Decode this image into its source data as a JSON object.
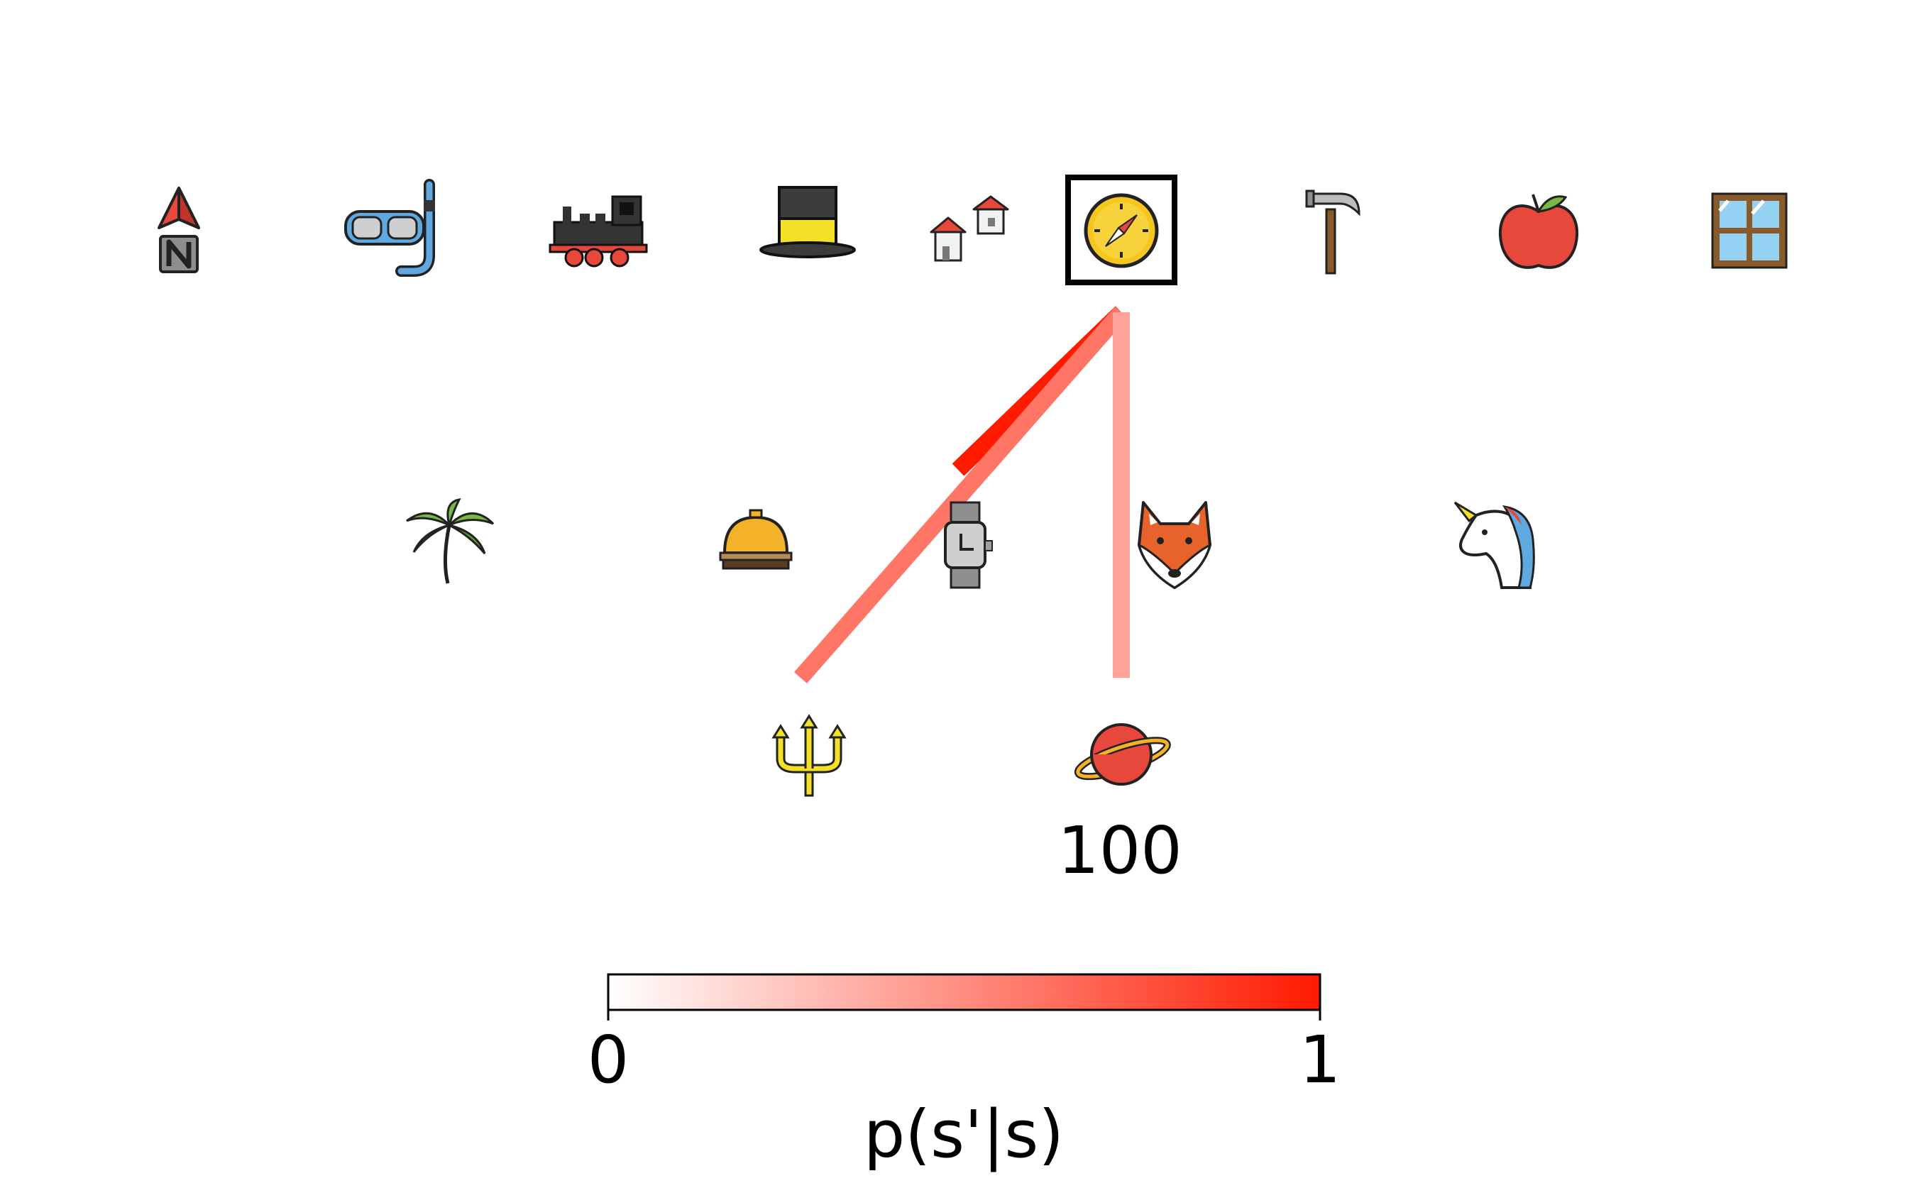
{
  "diagram": {
    "colormap": {
      "low_color": "#ffffff",
      "high_color": "#ff1a00",
      "min_label": "0",
      "max_label": "1",
      "title": "p(s'|s)"
    },
    "current_state": "compass",
    "node_labels": {
      "planet": "100"
    },
    "rows": [
      {
        "name": "top-row",
        "nodes": [
          "north-arrow",
          "snorkel-mask",
          "locomotive",
          "top-hat",
          "houses",
          "compass",
          "hammer",
          "apple",
          "window"
        ]
      },
      {
        "name": "middle-row",
        "nodes": [
          "palm-tree",
          "service-bell",
          "wristwatch",
          "fox",
          "unicorn"
        ]
      },
      {
        "name": "bottom-row",
        "nodes": [
          "trident",
          "planet"
        ]
      }
    ],
    "transitions": [
      {
        "from": "compass",
        "to": "wristwatch",
        "probability": 1.0
      },
      {
        "from": "compass",
        "to": "trident",
        "probability": 0.6
      },
      {
        "from": "compass",
        "to": "planet",
        "probability": 0.4
      }
    ],
    "colors": {
      "selection_box": "#000000",
      "edge_high": "#ff1a00"
    }
  }
}
